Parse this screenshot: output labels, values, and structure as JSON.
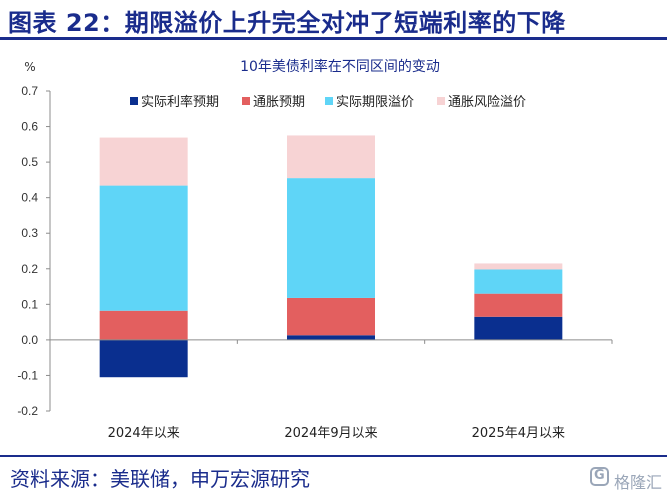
{
  "header": {
    "title": "图表 22：期限溢价上升完全对冲了短端利率的下降"
  },
  "footer": {
    "source": "资料来源：美联储，申万宏源研究"
  },
  "watermark": {
    "text": "格隆汇",
    "mark_letter": "G",
    "icon": "glh-logo-icon"
  },
  "chart_data": {
    "type": "bar",
    "stacked": true,
    "title": "10年美债利率在不同区间的变动",
    "ylabel": "%",
    "xlabel": "",
    "ylim": [
      -0.2,
      0.7
    ],
    "yticks": [
      -0.2,
      -0.1,
      0.0,
      0.1,
      0.2,
      0.3,
      0.4,
      0.5,
      0.6,
      0.7
    ],
    "ytick_labels": [
      "-0.2",
      "-0.1",
      "0.0",
      "0.1",
      "0.2",
      "0.3",
      "0.4",
      "0.5",
      "0.6",
      "0.7"
    ],
    "grid": false,
    "legend_position": "top",
    "categories": [
      "2024年以来",
      "2024年9月以来",
      "2025年4月以来"
    ],
    "series": [
      {
        "name": "实际利率预期",
        "color": "#0a2f8f",
        "values": [
          -0.105,
          0.013,
          0.065
        ]
      },
      {
        "name": "通胀预期",
        "color": "#e35f5f",
        "values": [
          0.082,
          0.105,
          0.065
        ]
      },
      {
        "name": "实际期限溢价",
        "color": "#5fd5f7",
        "values": [
          0.352,
          0.337,
          0.068
        ]
      },
      {
        "name": "通胀风险溢价",
        "color": "#f7d3d4",
        "values": [
          0.135,
          0.12,
          0.017
        ]
      }
    ]
  }
}
